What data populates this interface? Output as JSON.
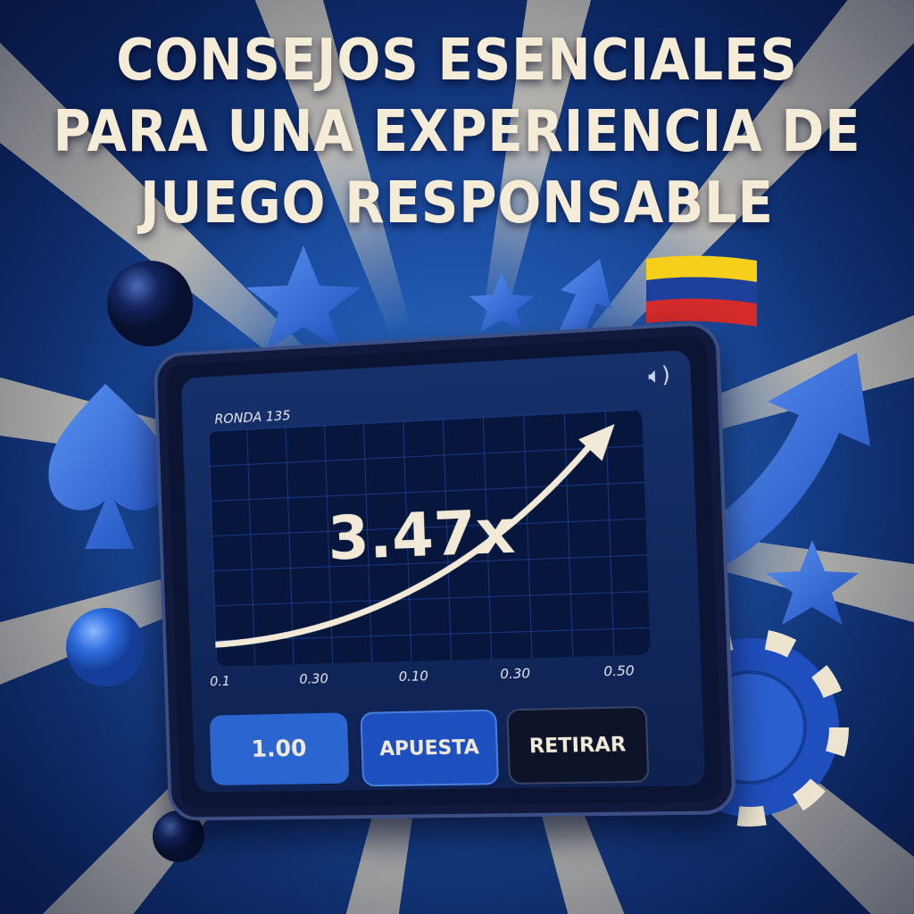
{
  "title": {
    "lines": [
      "CONSEJOS ESENCIALES",
      "PARA UNA EXPERIENCIA DE",
      "JUEGO RESPONSABLE"
    ]
  },
  "tablet": {
    "round_label": "RONDA 135",
    "multiplier": "3.47x",
    "axis_ticks": [
      "0.1",
      "0.30",
      "0.10",
      "0.30",
      "0.50"
    ],
    "bet_amount": "1.00",
    "bet_button": "APUESTA",
    "cashout_button": "RETIRAR",
    "speaker_icon": "speaker-icon"
  },
  "colors": {
    "background": "#1d52a8",
    "text": "#f4ecd6",
    "accent": "#2b66d0",
    "flag": [
      "#f5cf1a",
      "#1e3f9a",
      "#d42a2a"
    ]
  }
}
